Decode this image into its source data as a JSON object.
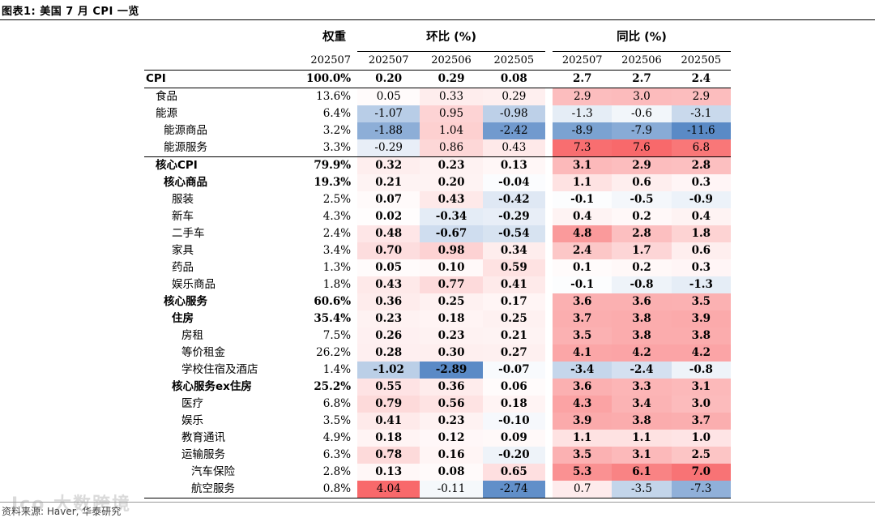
{
  "figure_title": "图表1:  美国 7 月 CPI 一览",
  "source": "资料来源: Haver, 华泰研究",
  "watermark": "Ico 大数跨境",
  "headers": {
    "weight": "权重",
    "mom": "环比 (%)",
    "yoy": "同比 (%)",
    "weight_period": "202507",
    "periods": [
      "202507",
      "202506",
      "202505"
    ]
  },
  "rows": [
    {
      "name": "CPI",
      "indent": 0,
      "bold": true,
      "weight": "100.0%",
      "mom": [
        "0.20",
        "0.29",
        "0.08"
      ],
      "yoy": [
        "2.7",
        "2.7",
        "2.4"
      ],
      "mom_val": [
        0.2,
        0.29,
        0.08
      ],
      "yoy_val": [
        2.7,
        2.7,
        2.4
      ]
    },
    {
      "name": "食品",
      "indent": 1,
      "bold": false,
      "weight": "13.6%",
      "mom": [
        "0.05",
        "0.33",
        "0.29"
      ],
      "yoy": [
        "2.9",
        "3.0",
        "2.9"
      ],
      "mom_val": [
        0.05,
        0.33,
        0.29
      ],
      "yoy_val": [
        2.9,
        3.0,
        2.9
      ]
    },
    {
      "name": "能源",
      "indent": 1,
      "bold": false,
      "weight": "6.4%",
      "mom": [
        "-1.07",
        "0.95",
        "-0.98"
      ],
      "yoy": [
        "-1.3",
        "-0.6",
        "-3.1"
      ],
      "mom_val": [
        -1.07,
        0.95,
        -0.98
      ],
      "yoy_val": [
        -1.3,
        -0.6,
        -3.1
      ]
    },
    {
      "name": "能源商品",
      "indent": 2,
      "bold": false,
      "weight": "3.2%",
      "mom": [
        "-1.88",
        "1.04",
        "-2.42"
      ],
      "yoy": [
        "-8.9",
        "-7.9",
        "-11.6"
      ],
      "mom_val": [
        -1.88,
        1.04,
        -2.42
      ],
      "yoy_val": [
        -8.9,
        -7.9,
        -11.6
      ]
    },
    {
      "name": "能源服务",
      "indent": 2,
      "bold": false,
      "weight": "3.3%",
      "mom": [
        "-0.29",
        "0.86",
        "0.43"
      ],
      "yoy": [
        "7.3",
        "7.6",
        "6.8"
      ],
      "mom_val": [
        -0.29,
        0.86,
        0.43
      ],
      "yoy_val": [
        7.3,
        7.6,
        6.8
      ]
    },
    {
      "name": "核心CPI",
      "indent": 1,
      "bold": true,
      "weight": "79.9%",
      "mom": [
        "0.32",
        "0.23",
        "0.13"
      ],
      "yoy": [
        "3.1",
        "2.9",
        "2.8"
      ],
      "mom_val": [
        0.32,
        0.23,
        0.13
      ],
      "yoy_val": [
        3.1,
        2.9,
        2.8
      ]
    },
    {
      "name": "核心商品",
      "indent": 2,
      "bold": true,
      "weight": "19.3%",
      "mom": [
        "0.21",
        "0.20",
        "-0.04"
      ],
      "yoy": [
        "1.1",
        "0.6",
        "0.3"
      ],
      "mom_val": [
        0.21,
        0.2,
        -0.04
      ],
      "yoy_val": [
        1.1,
        0.6,
        0.3
      ]
    },
    {
      "name": "服装",
      "indent": 3,
      "bold": false,
      "boldvals": true,
      "weight": "2.5%",
      "mom": [
        "0.07",
        "0.43",
        "-0.42"
      ],
      "yoy": [
        "-0.1",
        "-0.5",
        "-0.9"
      ],
      "mom_val": [
        0.07,
        0.43,
        -0.42
      ],
      "yoy_val": [
        -0.1,
        -0.5,
        -0.9
      ]
    },
    {
      "name": "新车",
      "indent": 3,
      "bold": false,
      "boldvals": true,
      "weight": "4.3%",
      "mom": [
        "0.02",
        "-0.34",
        "-0.29"
      ],
      "yoy": [
        "0.4",
        "0.2",
        "0.4"
      ],
      "mom_val": [
        0.02,
        -0.34,
        -0.29
      ],
      "yoy_val": [
        0.4,
        0.2,
        0.4
      ]
    },
    {
      "name": "二手车",
      "indent": 3,
      "bold": false,
      "boldvals": true,
      "weight": "2.4%",
      "mom": [
        "0.48",
        "-0.67",
        "-0.54"
      ],
      "yoy": [
        "4.8",
        "2.8",
        "1.8"
      ],
      "mom_val": [
        0.48,
        -0.67,
        -0.54
      ],
      "yoy_val": [
        4.8,
        2.8,
        1.8
      ]
    },
    {
      "name": "家具",
      "indent": 3,
      "bold": false,
      "boldvals": true,
      "weight": "3.4%",
      "mom": [
        "0.70",
        "0.98",
        "0.34"
      ],
      "yoy": [
        "2.4",
        "1.7",
        "0.6"
      ],
      "mom_val": [
        0.7,
        0.98,
        0.34
      ],
      "yoy_val": [
        2.4,
        1.7,
        0.6
      ]
    },
    {
      "name": "药品",
      "indent": 3,
      "bold": false,
      "boldvals": true,
      "weight": "1.3%",
      "mom": [
        "0.05",
        "0.10",
        "0.59"
      ],
      "yoy": [
        "0.1",
        "0.2",
        "0.3"
      ],
      "mom_val": [
        0.05,
        0.1,
        0.59
      ],
      "yoy_val": [
        0.1,
        0.2,
        0.3
      ]
    },
    {
      "name": "娱乐商品",
      "indent": 3,
      "bold": false,
      "boldvals": true,
      "weight": "1.8%",
      "mom": [
        "0.43",
        "0.77",
        "0.41"
      ],
      "yoy": [
        "-0.1",
        "-0.8",
        "-1.3"
      ],
      "mom_val": [
        0.43,
        0.77,
        0.41
      ],
      "yoy_val": [
        -0.1,
        -0.8,
        -1.3
      ]
    },
    {
      "name": "核心服务",
      "indent": 2,
      "bold": true,
      "weight": "60.6%",
      "mom": [
        "0.36",
        "0.25",
        "0.17"
      ],
      "yoy": [
        "3.6",
        "3.6",
        "3.5"
      ],
      "mom_val": [
        0.36,
        0.25,
        0.17
      ],
      "yoy_val": [
        3.6,
        3.6,
        3.5
      ]
    },
    {
      "name": "住房",
      "indent": 3,
      "bold": true,
      "weight": "35.4%",
      "mom": [
        "0.23",
        "0.18",
        "0.25"
      ],
      "yoy": [
        "3.7",
        "3.8",
        "3.9"
      ],
      "mom_val": [
        0.23,
        0.18,
        0.25
      ],
      "yoy_val": [
        3.7,
        3.8,
        3.9
      ]
    },
    {
      "name": "房租",
      "indent": 4,
      "bold": false,
      "boldvals": true,
      "weight": "7.5%",
      "mom": [
        "0.26",
        "0.23",
        "0.21"
      ],
      "yoy": [
        "3.5",
        "3.8",
        "3.8"
      ],
      "mom_val": [
        0.26,
        0.23,
        0.21
      ],
      "yoy_val": [
        3.5,
        3.8,
        3.8
      ]
    },
    {
      "name": "等价租金",
      "indent": 4,
      "bold": false,
      "boldvals": true,
      "weight": "26.2%",
      "mom": [
        "0.28",
        "0.30",
        "0.27"
      ],
      "yoy": [
        "4.1",
        "4.2",
        "4.2"
      ],
      "mom_val": [
        0.28,
        0.3,
        0.27
      ],
      "yoy_val": [
        4.1,
        4.2,
        4.2
      ]
    },
    {
      "name": "学校住宿及酒店",
      "indent": 4,
      "bold": false,
      "boldvals": true,
      "weight": "1.4%",
      "mom": [
        "-1.02",
        "-2.89",
        "-0.07"
      ],
      "yoy": [
        "-3.4",
        "-2.4",
        "-0.8"
      ],
      "mom_val": [
        -1.02,
        -2.89,
        -0.07
      ],
      "yoy_val": [
        -3.4,
        -2.4,
        -0.8
      ]
    },
    {
      "name": "核心服务ex住房",
      "indent": 3,
      "bold": true,
      "weight": "25.2%",
      "mom": [
        "0.55",
        "0.36",
        "0.06"
      ],
      "yoy": [
        "3.6",
        "3.3",
        "3.1"
      ],
      "mom_val": [
        0.55,
        0.36,
        0.06
      ],
      "yoy_val": [
        3.6,
        3.3,
        3.1
      ]
    },
    {
      "name": "医疗",
      "indent": 4,
      "bold": false,
      "boldvals": true,
      "weight": "6.8%",
      "mom": [
        "0.79",
        "0.56",
        "0.18"
      ],
      "yoy": [
        "4.3",
        "3.4",
        "3.0"
      ],
      "mom_val": [
        0.79,
        0.56,
        0.18
      ],
      "yoy_val": [
        4.3,
        3.4,
        3.0
      ]
    },
    {
      "name": "娱乐",
      "indent": 4,
      "bold": false,
      "boldvals": true,
      "weight": "3.5%",
      "mom": [
        "0.41",
        "0.23",
        "-0.10"
      ],
      "yoy": [
        "3.9",
        "3.8",
        "3.7"
      ],
      "mom_val": [
        0.41,
        0.23,
        -0.1
      ],
      "yoy_val": [
        3.9,
        3.8,
        3.7
      ]
    },
    {
      "name": "教育通讯",
      "indent": 4,
      "bold": false,
      "boldvals": true,
      "weight": "4.9%",
      "mom": [
        "0.18",
        "0.12",
        "0.09"
      ],
      "yoy": [
        "1.1",
        "1.1",
        "1.0"
      ],
      "mom_val": [
        0.18,
        0.12,
        0.09
      ],
      "yoy_val": [
        1.1,
        1.1,
        1.0
      ]
    },
    {
      "name": "运输服务",
      "indent": 4,
      "bold": false,
      "boldvals": true,
      "weight": "6.3%",
      "mom": [
        "0.78",
        "0.16",
        "-0.20"
      ],
      "yoy": [
        "3.5",
        "3.1",
        "2.5"
      ],
      "mom_val": [
        0.78,
        0.16,
        -0.2
      ],
      "yoy_val": [
        3.5,
        3.1,
        2.5
      ]
    },
    {
      "name": "汽车保险",
      "indent": 5,
      "bold": false,
      "boldvals": true,
      "weight": "2.8%",
      "mom": [
        "0.13",
        "0.08",
        "0.65"
      ],
      "yoy": [
        "5.3",
        "6.1",
        "7.0"
      ],
      "mom_val": [
        0.13,
        0.08,
        0.65
      ],
      "yoy_val": [
        5.3,
        6.1,
        7.0
      ]
    },
    {
      "name": "航空服务",
      "indent": 5,
      "bold": false,
      "boldvals": false,
      "weight": "0.8%",
      "mom": [
        "4.04",
        "-0.11",
        "-2.74"
      ],
      "yoy": [
        "0.7",
        "-3.5",
        "-7.3"
      ],
      "mom_val": [
        4.04,
        -0.11,
        -2.74
      ],
      "yoy_val": [
        0.7,
        -3.5,
        -7.3
      ]
    }
  ],
  "colors": {
    "pos": "#f8696b",
    "neg": "#5a8ac6",
    "neutral": "#ffffff"
  }
}
